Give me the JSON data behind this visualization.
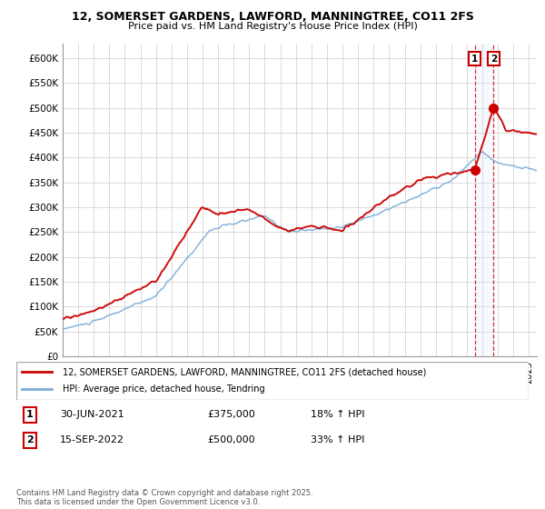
{
  "title": "12, SOMERSET GARDENS, LAWFORD, MANNINGTREE, CO11 2FS",
  "subtitle": "Price paid vs. HM Land Registry's House Price Index (HPI)",
  "legend_line1": "12, SOMERSET GARDENS, LAWFORD, MANNINGTREE, CO11 2FS (detached house)",
  "legend_line2": "HPI: Average price, detached house, Tendring",
  "footnote": "Contains HM Land Registry data © Crown copyright and database right 2025.\nThis data is licensed under the Open Government Licence v3.0.",
  "annotation1_label": "1",
  "annotation1_date": "30-JUN-2021",
  "annotation1_price": "£375,000",
  "annotation1_hpi": "18% ↑ HPI",
  "annotation2_label": "2",
  "annotation2_date": "15-SEP-2022",
  "annotation2_price": "£500,000",
  "annotation2_hpi": "33% ↑ HPI",
  "red_color": "#cc0000",
  "blue_color": "#7aadda",
  "dashed_color": "#cc0000",
  "shade_color": "#ddeeff",
  "ylim_min": 0,
  "ylim_max": 630000,
  "yticks": [
    0,
    50000,
    100000,
    150000,
    200000,
    250000,
    300000,
    350000,
    400000,
    450000,
    500000,
    550000,
    600000
  ],
  "ytick_labels": [
    "£0",
    "£50K",
    "£100K",
    "£150K",
    "£200K",
    "£250K",
    "£300K",
    "£350K",
    "£400K",
    "£450K",
    "£500K",
    "£550K",
    "£600K"
  ],
  "sale1_x": 2021.5,
  "sale1_y": 375000,
  "sale2_x": 2022.72,
  "sale2_y": 500000,
  "xmin": 1995.0,
  "xmax": 2025.5
}
